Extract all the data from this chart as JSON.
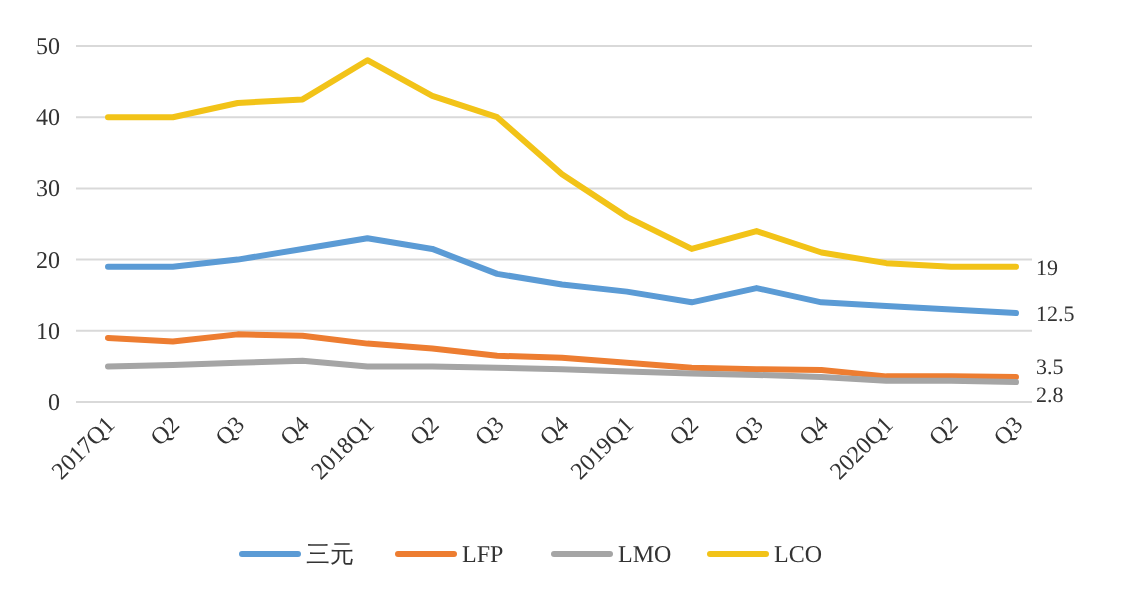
{
  "chart_data": {
    "type": "line",
    "categories": [
      "2017Q1",
      "Q2",
      "Q3",
      "Q4",
      "2018Q1",
      "Q2",
      "Q3",
      "Q4",
      "2019Q1",
      "Q2",
      "Q3",
      "Q4",
      "2020Q1",
      "Q2",
      "Q3"
    ],
    "ylim": [
      0,
      50
    ],
    "yticks": [
      0,
      10,
      20,
      30,
      40,
      50
    ],
    "grid": "y",
    "legend": "bottom",
    "marker": "none",
    "line_style": "solid",
    "series": [
      {
        "name": "三元",
        "color": "#5b9bd5",
        "values": [
          19,
          19,
          20,
          21.5,
          23,
          21.5,
          18,
          16.5,
          15.5,
          14,
          16,
          14,
          13.5,
          13,
          12.5
        ],
        "value_labels": [
          null,
          null,
          null,
          null,
          null,
          null,
          null,
          null,
          null,
          null,
          null,
          null,
          null,
          null,
          "12.5"
        ]
      },
      {
        "name": "LFP",
        "color": "#ed7d31",
        "values": [
          9,
          8.5,
          9.5,
          9.3,
          8.2,
          7.5,
          6.5,
          6.2,
          5.5,
          4.8,
          4.6,
          4.5,
          3.6,
          3.6,
          3.5
        ],
        "value_labels": [
          null,
          null,
          null,
          null,
          null,
          null,
          null,
          null,
          null,
          null,
          null,
          null,
          null,
          null,
          "3.5"
        ]
      },
      {
        "name": "LMO",
        "color": "#a5a5a5",
        "values": [
          5,
          5.2,
          5.5,
          5.8,
          5,
          5,
          4.8,
          4.6,
          4.3,
          4,
          3.8,
          3.5,
          3,
          3,
          2.8
        ],
        "value_labels": [
          null,
          null,
          null,
          null,
          null,
          null,
          null,
          null,
          null,
          null,
          null,
          null,
          null,
          null,
          "2.8"
        ]
      },
      {
        "name": "LCO",
        "color": "#f2c318",
        "values": [
          40,
          40,
          42,
          42.5,
          48,
          43,
          40,
          32,
          26,
          21.5,
          24,
          21,
          19.5,
          19,
          19
        ],
        "value_labels": [
          null,
          null,
          null,
          null,
          null,
          null,
          null,
          null,
          null,
          null,
          null,
          null,
          null,
          null,
          "19"
        ]
      }
    ]
  }
}
